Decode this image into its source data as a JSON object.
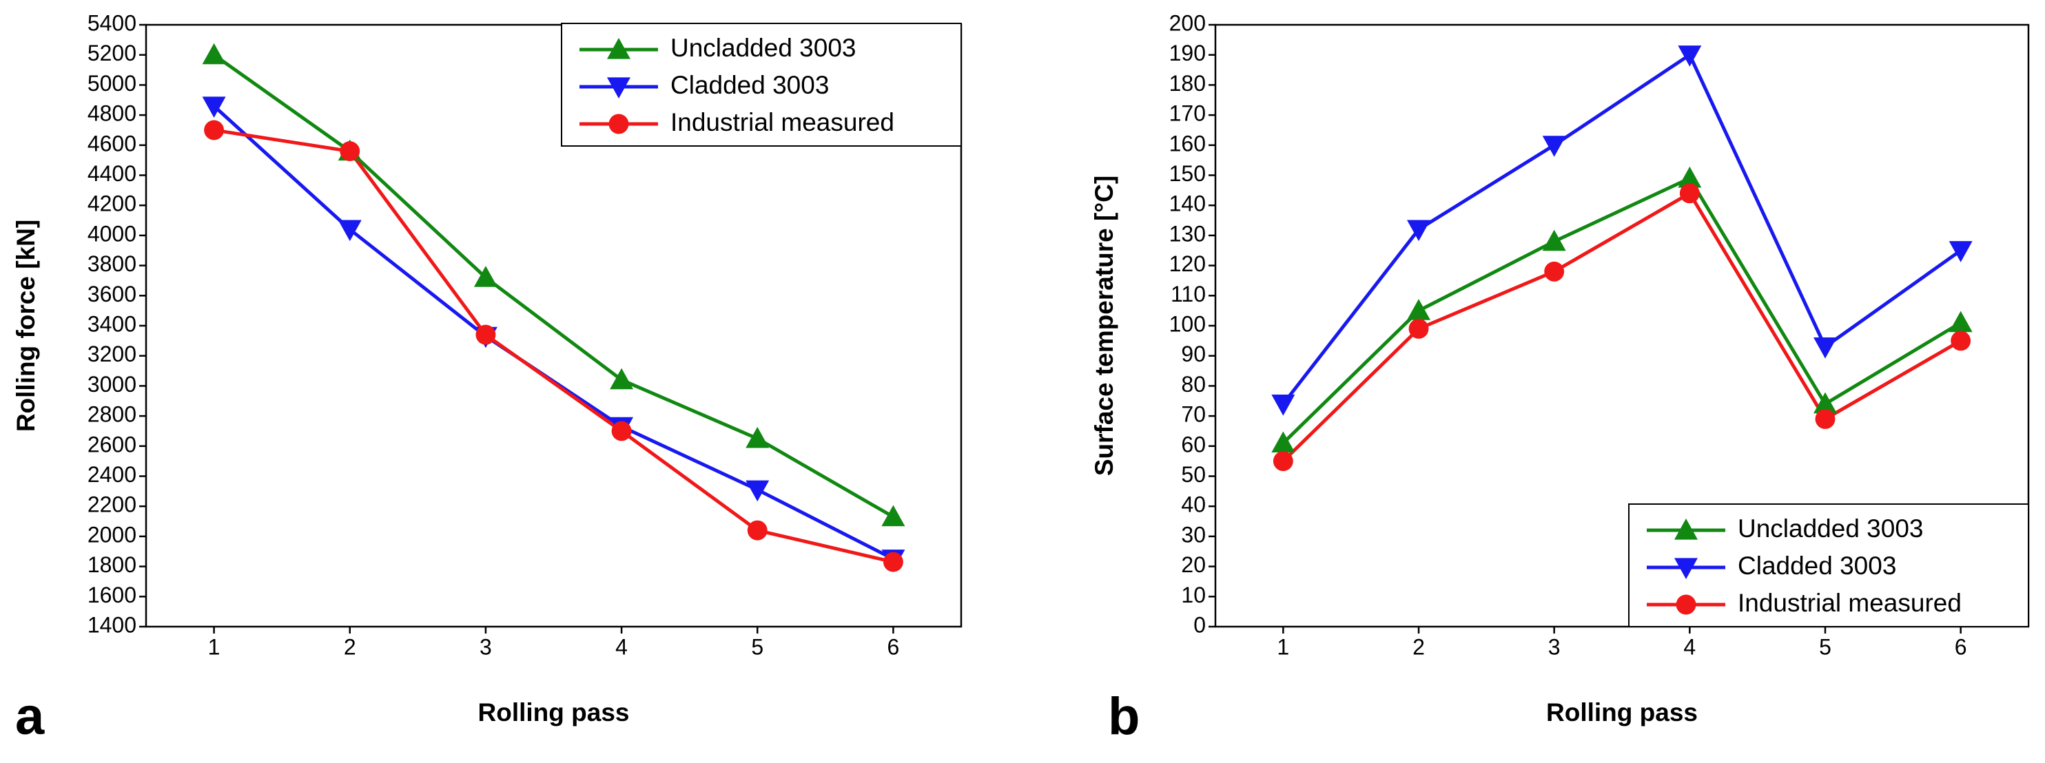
{
  "chart_data": [
    {
      "type": "line",
      "panel_label": "a",
      "x_label": "Rolling pass",
      "y_label": "Rolling force [kN]",
      "x": [
        1,
        2,
        3,
        4,
        5,
        6
      ],
      "xlim": [
        0.5,
        6.5
      ],
      "xticks": [
        1,
        2,
        3,
        4,
        5,
        6
      ],
      "ylim": [
        1400,
        5400
      ],
      "yticks": [
        1400,
        1600,
        1800,
        2000,
        2200,
        2400,
        2600,
        2800,
        3000,
        3200,
        3400,
        3600,
        3800,
        4000,
        4200,
        4400,
        4600,
        4800,
        5000,
        5200,
        5400
      ],
      "legend": "upper right",
      "series": [
        {
          "name": "Uncladded 3003",
          "color": "#118811",
          "marker": "triangle-up",
          "values": [
            5200,
            4560,
            3720,
            3040,
            2650,
            2130
          ]
        },
        {
          "name": "Cladded 3003",
          "color": "#1818f0",
          "marker": "triangle-down",
          "values": [
            4860,
            4040,
            3330,
            2730,
            2310,
            1850
          ]
        },
        {
          "name": "Industrial measured",
          "color": "#f01818",
          "marker": "circle",
          "values": [
            4700,
            4560,
            3340,
            2700,
            2040,
            1830
          ]
        }
      ]
    },
    {
      "type": "line",
      "panel_label": "b",
      "x_label": "Rolling pass",
      "y_label": "Surface temperature [°C]",
      "x": [
        1,
        2,
        3,
        4,
        5,
        6
      ],
      "xlim": [
        0.5,
        6.5
      ],
      "xticks": [
        1,
        2,
        3,
        4,
        5,
        6
      ],
      "ylim": [
        0,
        200
      ],
      "yticks": [
        0,
        10,
        20,
        30,
        40,
        50,
        60,
        70,
        80,
        90,
        100,
        110,
        120,
        130,
        140,
        150,
        160,
        170,
        180,
        190,
        200
      ],
      "legend": "lower right",
      "series": [
        {
          "name": "Uncladded 3003",
          "color": "#118811",
          "marker": "triangle-up",
          "values": [
            61,
            105,
            128,
            149,
            74,
            101
          ]
        },
        {
          "name": "Cladded 3003",
          "color": "#1818f0",
          "marker": "triangle-down",
          "values": [
            74,
            132,
            160,
            190,
            93,
            125
          ]
        },
        {
          "name": "Industrial measured",
          "color": "#f01818",
          "marker": "circle",
          "values": [
            55,
            99,
            118,
            144,
            69,
            95
          ]
        }
      ]
    }
  ]
}
